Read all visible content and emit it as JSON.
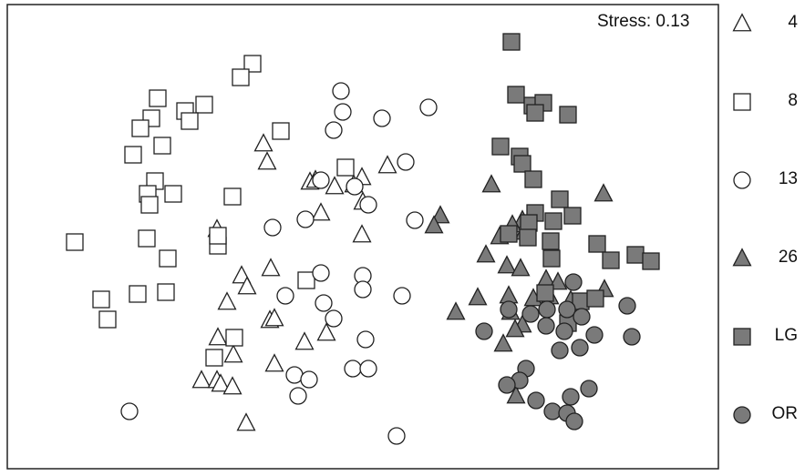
{
  "chart_data": {
    "type": "scatter",
    "title": "",
    "annotation": "Stress: 0.13",
    "xlabel": "",
    "ylabel": "",
    "grid": false,
    "legend_placement": "right",
    "colors": {
      "open": "#ffffff",
      "filled": "#7a7a7a",
      "stroke": "#222222"
    },
    "series": [
      {
        "name": "4",
        "marker": "triangle",
        "filled": false,
        "points": [
          [
            289,
            158
          ],
          [
            293,
            178
          ],
          [
            340,
            200
          ],
          [
            346,
            198
          ],
          [
            367,
            205
          ],
          [
            388,
            203
          ],
          [
            397,
            195
          ],
          [
            425,
            182
          ],
          [
            398,
            222
          ],
          [
            352,
            234
          ],
          [
            238,
            252
          ],
          [
            397,
            258
          ],
          [
            297,
            295
          ],
          [
            265,
            303
          ],
          [
            271,
            315
          ],
          [
            249,
            332
          ],
          [
            296,
            352
          ],
          [
            301,
            350
          ],
          [
            358,
            366
          ],
          [
            334,
            376
          ],
          [
            239,
            371
          ],
          [
            256,
            390
          ],
          [
            301,
            400
          ],
          [
            221,
            418
          ],
          [
            238,
            418
          ],
          [
            242,
            422
          ],
          [
            255,
            425
          ],
          [
            270,
            465
          ]
        ]
      },
      {
        "name": "8",
        "marker": "square",
        "filled": false,
        "points": [
          [
            277,
            70
          ],
          [
            264,
            85
          ],
          [
            173,
            108
          ],
          [
            224,
            115
          ],
          [
            203,
            122
          ],
          [
            208,
            133
          ],
          [
            166,
            130
          ],
          [
            154,
            141
          ],
          [
            308,
            144
          ],
          [
            178,
            160
          ],
          [
            146,
            170
          ],
          [
            379,
            184
          ],
          [
            170,
            199
          ],
          [
            190,
            213
          ],
          [
            162,
            213
          ],
          [
            255,
            216
          ],
          [
            164,
            225
          ],
          [
            82,
            266
          ],
          [
            161,
            262
          ],
          [
            239,
            270
          ],
          [
            239,
            259
          ],
          [
            184,
            284
          ],
          [
            336,
            308
          ],
          [
            151,
            323
          ],
          [
            182,
            321
          ],
          [
            111,
            329
          ],
          [
            118,
            351
          ],
          [
            257,
            371
          ],
          [
            235,
            393
          ]
        ]
      },
      {
        "name": "13",
        "marker": "circle",
        "filled": false,
        "points": [
          [
            374,
            100
          ],
          [
            376,
            123
          ],
          [
            470,
            118
          ],
          [
            419,
            130
          ],
          [
            366,
            143
          ],
          [
            445,
            178
          ],
          [
            352,
            198
          ],
          [
            389,
            205
          ],
          [
            404,
            225
          ],
          [
            335,
            241
          ],
          [
            455,
            242
          ],
          [
            299,
            250
          ],
          [
            352,
            300
          ],
          [
            398,
            303
          ],
          [
            398,
            318
          ],
          [
            313,
            325
          ],
          [
            441,
            325
          ],
          [
            355,
            333
          ],
          [
            366,
            350
          ],
          [
            401,
            373
          ],
          [
            323,
            412
          ],
          [
            339,
            417
          ],
          [
            387,
            405
          ],
          [
            404,
            405
          ],
          [
            327,
            435
          ],
          [
            142,
            452
          ],
          [
            435,
            479
          ]
        ]
      },
      {
        "name": "26",
        "marker": "triangle",
        "filled": true,
        "points": [
          [
            539,
            203
          ],
          [
            662,
            213
          ],
          [
            483,
            237
          ],
          [
            476,
            248
          ],
          [
            548,
            260
          ],
          [
            573,
            242
          ],
          [
            562,
            247
          ],
          [
            575,
            255
          ],
          [
            533,
            280
          ],
          [
            556,
            292
          ],
          [
            571,
            295
          ],
          [
            599,
            307
          ],
          [
            612,
            310
          ],
          [
            524,
            327
          ],
          [
            558,
            325
          ],
          [
            585,
            328
          ],
          [
            603,
            326
          ],
          [
            626,
            330
          ],
          [
            663,
            318
          ],
          [
            500,
            343
          ],
          [
            560,
            343
          ],
          [
            573,
            357
          ],
          [
            565,
            362
          ],
          [
            552,
            378
          ],
          [
            566,
            435
          ]
        ]
      },
      {
        "name": "LG",
        "marker": "square",
        "filled": true,
        "points": [
          [
            561,
            46
          ],
          [
            566,
            104
          ],
          [
            584,
            116
          ],
          [
            596,
            113
          ],
          [
            587,
            124
          ],
          [
            623,
            126
          ],
          [
            549,
            161
          ],
          [
            570,
            172
          ],
          [
            573,
            180
          ],
          [
            585,
            197
          ],
          [
            614,
            219
          ],
          [
            587,
            234
          ],
          [
            580,
            245
          ],
          [
            607,
            243
          ],
          [
            628,
            237
          ],
          [
            558,
            257
          ],
          [
            579,
            261
          ],
          [
            604,
            265
          ],
          [
            655,
            268
          ],
          [
            697,
            280
          ],
          [
            670,
            286
          ],
          [
            714,
            287
          ],
          [
            605,
            284
          ],
          [
            598,
            322
          ],
          [
            637,
            331
          ],
          [
            653,
            328
          ],
          [
            623,
            355
          ]
        ]
      },
      {
        "name": "OR",
        "marker": "circle",
        "filled": true,
        "points": [
          [
            629,
            310
          ],
          [
            688,
            336
          ],
          [
            558,
            340
          ],
          [
            582,
            345
          ],
          [
            600,
            340
          ],
          [
            622,
            340
          ],
          [
            638,
            348
          ],
          [
            531,
            364
          ],
          [
            599,
            358
          ],
          [
            619,
            364
          ],
          [
            652,
            368
          ],
          [
            693,
            370
          ],
          [
            614,
            385
          ],
          [
            636,
            382
          ],
          [
            577,
            405
          ],
          [
            570,
            418
          ],
          [
            556,
            423
          ],
          [
            646,
            427
          ],
          [
            588,
            440
          ],
          [
            626,
            436
          ],
          [
            606,
            452
          ],
          [
            622,
            454
          ],
          [
            630,
            463
          ]
        ]
      }
    ]
  }
}
